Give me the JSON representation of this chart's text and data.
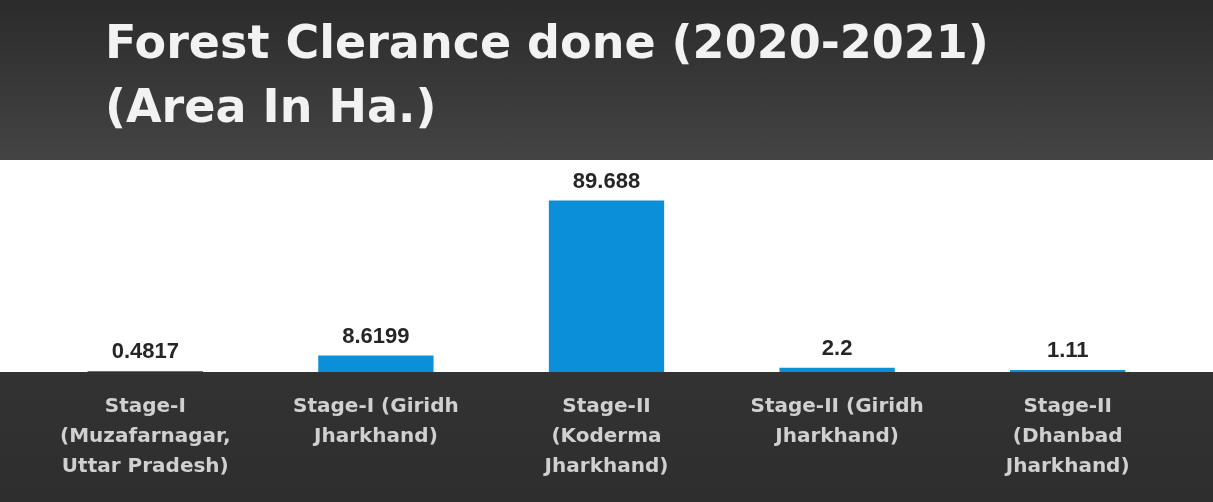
{
  "chart_data": {
    "type": "bar",
    "title": "Forest Clerance done (2020-2021)\n(Area In Ha.)",
    "categories": [
      "Stage-I (Muzafarnagar, Uttar Pradesh)",
      "Stage-I (Giridh Jharkhand)",
      "Stage-II (Koderma Jharkhand)",
      "Stage-II (Giridh Jharkhand)",
      "Stage-II (Dhanbad Jharkhand)"
    ],
    "values": [
      0.4817,
      8.6199,
      89.688,
      2.2,
      1.11
    ],
    "color": "#0a8fd8",
    "data_labels": true,
    "grid": false,
    "legend": false
  }
}
